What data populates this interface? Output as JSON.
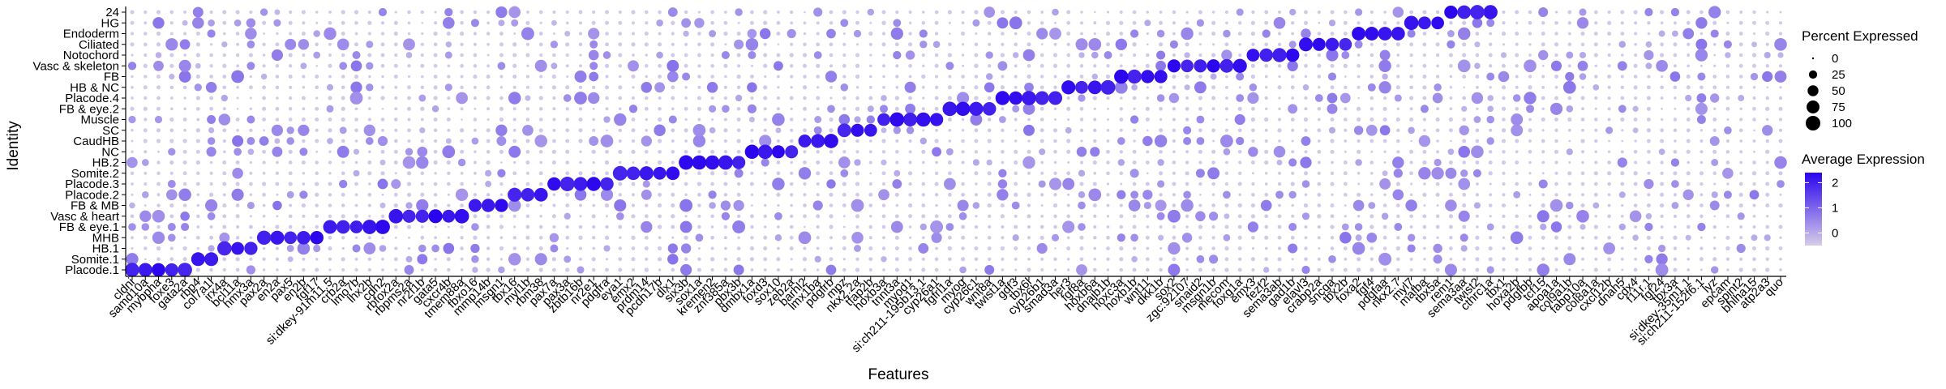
{
  "chart_data": {
    "type": "dotplot",
    "xlabel": "Features",
    "ylabel": "Identity",
    "identities": [
      "Placode.1",
      "Somite.1",
      "HB.1",
      "MHB",
      "FB & eye.1",
      "Vasc & heart",
      "FB & MB",
      "Placode.2",
      "Placode.3",
      "Somite.2",
      "HB.2",
      "NC",
      "CaudHB",
      "SC",
      "Muscle",
      "FB & eye.2",
      "Placode.4",
      "HB & NC",
      "FB",
      "Vasc & skeleton",
      "Notochord",
      "Ciliated",
      "Endoderm",
      "HG",
      "24"
    ],
    "features": [
      "cldni",
      "samd10a",
      "mybpha",
      "foxe3",
      "gata2a",
      "rbp4",
      "col7a1l",
      "irx4a",
      "bcl11a",
      "hmx3a",
      "pax2a",
      "en2a",
      "pax5",
      "en2b",
      "fgf17",
      "si:dkey-91m11.5",
      "crb2a",
      "lmo7b",
      "lhx2b",
      "cdh2",
      "rbfox2a",
      "rbpms2a",
      "nr2f1b",
      "gata5",
      "cxcr4b",
      "tmem88a",
      "fbxo16",
      "mmp14b",
      "msgn1",
      "tbx16",
      "myl1b",
      "rbm38",
      "pax7a",
      "pax3a",
      "zbtb16b",
      "nr2e1",
      "pdgfra",
      "eya1",
      "emx2",
      "prdm14",
      "pcdh17b",
      "dlx1",
      "six3b",
      "sox1a",
      "kremen2",
      "znf385a",
      "pbx3b",
      "dmbx1a",
      "foxd3",
      "sox10",
      "zeb2a",
      "barhl2",
      "lmx1ba",
      "pdgfrb",
      "mpz",
      "nkx2.2a",
      "tfap2b",
      "hoxb3a",
      "tnnt3a",
      "myod1",
      "si:ch211-195b13.1",
      "cyp26a1",
      "fgfrl1a",
      "myog",
      "cyp26c1",
      "wnt8a",
      "twist1a",
      "gdf3",
      "tbx6l",
      "cyp26b1",
      "smad3a",
      "her3",
      "fgf8a",
      "hoxb6a",
      "dnajb1b",
      "hoxc3a",
      "hoxb1b",
      "wnt11",
      "dkk1b",
      "sox2",
      "zgc:92107",
      "snaid2",
      "msgn1b",
      "mecom",
      "foxg1a",
      "emx3",
      "fezf2",
      "sema3ab",
      "gad1b",
      "elavl3",
      "crabp2a",
      "sncga",
      "tbx2b",
      "foxa2",
      "fgf4",
      "pdgfaa",
      "nkx2.7",
      "myl7",
      "mafba",
      "tbx5a",
      "rem1",
      "sema3aa",
      "twist2",
      "cthrc1a",
      "tbx1",
      "hoxa2b",
      "pdgfbb",
      "tcf15",
      "apoa1a",
      "col9a1b",
      "fabp10a",
      "col8a1a",
      "cxcl12b",
      "dnah5",
      "cdx4",
      "f11r.1",
      "fgf24",
      "tbx3a",
      "si:dkey-35m1.1",
      "si:ch211-152f6.1",
      "lyz",
      "epcam",
      "spint2",
      "bhlha15",
      "atp2a3",
      "quo"
    ],
    "expression_range": [
      -0.5,
      2.4
    ],
    "expression_ticks": [
      0,
      1,
      2
    ],
    "percent_ticks": [
      0,
      25,
      50,
      75,
      100
    ],
    "color_low": "#d6cde8",
    "color_high": "#2a04ee",
    "markers_per_identity": [
      5,
      2,
      3,
      5,
      5,
      6,
      3,
      3,
      5,
      5,
      5,
      4,
      3,
      3,
      5,
      4,
      5,
      4,
      4,
      6,
      4,
      4,
      4,
      3,
      4
    ],
    "legend_title_size": "Percent Expressed",
    "legend_title_color": "Average Expression"
  }
}
